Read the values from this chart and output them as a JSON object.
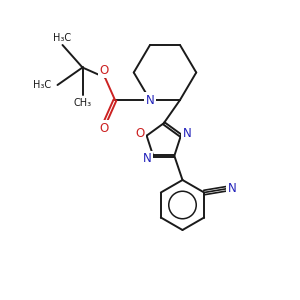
{
  "bg_color": "#ffffff",
  "bond_color": "#1a1a1a",
  "N_color": "#2222bb",
  "O_color": "#cc2222",
  "lw": 1.4,
  "figsize": [
    3.0,
    3.0
  ],
  "dpi": 100,
  "xlim": [
    -1,
    11
  ],
  "ylim": [
    -1,
    11
  ]
}
